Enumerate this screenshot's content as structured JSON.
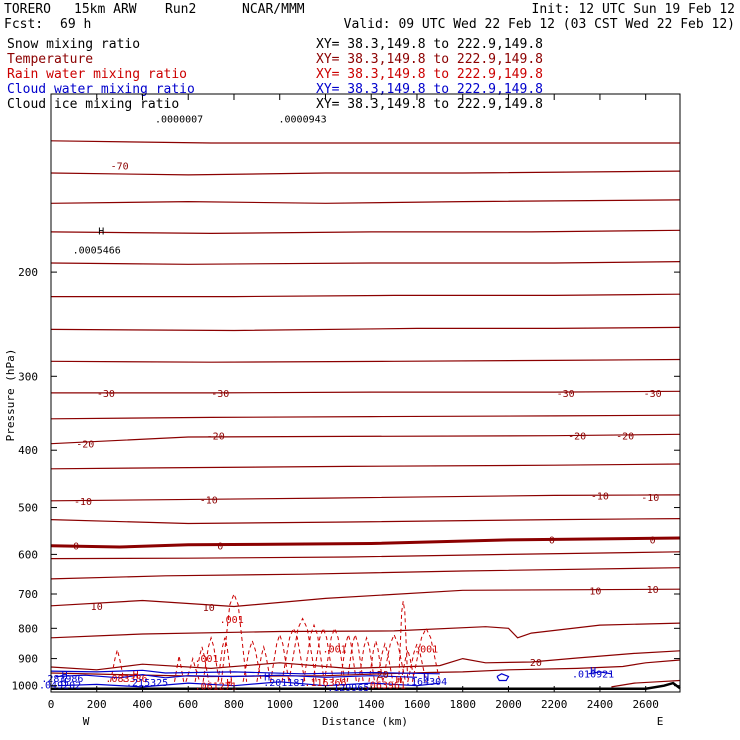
{
  "header": {
    "model": "TORERO",
    "resolution": "15km ARW",
    "run": "Run2",
    "center": "NCAR/MMM",
    "init": "Init: 12 UTC Sun 19 Feb 12",
    "fcst_label": "Fcst:",
    "fcst_value": "69 h",
    "valid": "Valid: 09 UTC Wed 22 Feb 12 (03 CST Wed 22 Feb 12)"
  },
  "colors": {
    "snow": "#000000",
    "temperature": "#8b0000",
    "rain": "#cc0000",
    "cloud_water": "#0000cc",
    "cloud_ice": "#000000"
  },
  "chart_data": {
    "type": "cross-section",
    "xlabel": "Distance (km)",
    "ylabel": "Pressure (hPa)",
    "xlim": [
      0,
      2750
    ],
    "ylim": [
      1025,
      100
    ],
    "x_ticks": [
      "0",
      "200",
      "400",
      "600",
      "800",
      "1000",
      "1200",
      "1400",
      "1600",
      "1800",
      "2000",
      "2200",
      "2400",
      "2600"
    ],
    "y_ticks": [
      "200",
      "300",
      "400",
      "500",
      "600",
      "700",
      "800",
      "900",
      "1000"
    ],
    "left_end": "W",
    "right_end": "E",
    "fields": [
      {
        "name": "Snow mixing ratio",
        "xy": "XY=  38.3,149.8 to 222.9,149.8"
      },
      {
        "name": "Temperature",
        "xy": "XY=  38.3,149.8 to 222.9,149.8"
      },
      {
        "name": "Rain water mixing ratio",
        "xy": "XY=  38.3,149.8 to 222.9,149.8"
      },
      {
        "name": "Cloud water mixing ratio",
        "xy": "XY=  38.3,149.8 to 222.9,149.8"
      },
      {
        "name": "Cloud ice mixing ratio",
        "xy": "XY=  38.3,149.8 to 222.9,149.8"
      }
    ],
    "temperature_contour_labels": [
      {
        "text": "-70",
        "x": 300,
        "p": 132
      },
      {
        "text": "-30",
        "x": 240,
        "p": 320
      },
      {
        "text": "-30",
        "x": 740,
        "p": 320
      },
      {
        "text": "-30",
        "x": 2250,
        "p": 320
      },
      {
        "text": "-30",
        "x": 2630,
        "p": 320
      },
      {
        "text": "-20",
        "x": 150,
        "p": 390
      },
      {
        "text": "-20",
        "x": 720,
        "p": 378
      },
      {
        "text": "-20",
        "x": 2300,
        "p": 378
      },
      {
        "text": "-20",
        "x": 2510,
        "p": 378
      },
      {
        "text": "-10",
        "x": 140,
        "p": 487
      },
      {
        "text": "-10",
        "x": 690,
        "p": 485
      },
      {
        "text": "-10",
        "x": 2400,
        "p": 477
      },
      {
        "text": "-10",
        "x": 2620,
        "p": 480
      },
      {
        "text": "0",
        "x": 110,
        "p": 580
      },
      {
        "text": "0",
        "x": 740,
        "p": 580
      },
      {
        "text": "0",
        "x": 2190,
        "p": 566
      },
      {
        "text": "0",
        "x": 2630,
        "p": 566
      },
      {
        "text": "10",
        "x": 200,
        "p": 733
      },
      {
        "text": "10",
        "x": 690,
        "p": 736
      },
      {
        "text": "10",
        "x": 2380,
        "p": 690
      },
      {
        "text": "10",
        "x": 2630,
        "p": 687
      },
      {
        "text": "20",
        "x": 1450,
        "p": 955
      },
      {
        "text": "20",
        "x": 2120,
        "p": 912
      }
    ],
    "min_max_labels": [
      {
        "text": "H",
        "x": 220,
        "p": 170,
        "color": "#000000"
      },
      {
        "text": ".0005466",
        "x": 200,
        "p": 183,
        "color": "#000000"
      },
      {
        "text": ".0000007",
        "x": 560,
        "p": 110,
        "color": "#000000"
      },
      {
        "text": ".0000943",
        "x": 1100,
        "p": 110,
        "color": "#000000"
      },
      {
        "text": ".001",
        "x": 790,
        "p": 771,
        "color": "#cc0000"
      },
      {
        "text": ".001",
        "x": 680,
        "p": 898,
        "color": "#cc0000"
      },
      {
        "text": ".001",
        "x": 1240,
        "p": 865,
        "color": "#cc0000"
      },
      {
        "text": ".001",
        "x": 1640,
        "p": 865,
        "color": "#cc0000"
      },
      {
        "text": "H",
        "x": 370,
        "p": 955,
        "color": "#cc0000"
      },
      {
        "text": ".083386",
        "x": 330,
        "p": 970,
        "color": "#cc0000"
      },
      {
        "text": "H",
        "x": 780,
        "p": 985,
        "color": "#cc0000"
      },
      {
        "text": ".061271",
        "x": 720,
        "p": 1000,
        "color": "#cc0000"
      },
      {
        "text": ".116366",
        "x": 1200,
        "p": 985,
        "color": "#cc0000"
      },
      {
        "text": ".063961",
        "x": 1460,
        "p": 995,
        "color": "#cc0000"
      },
      {
        "text": "H",
        "x": 1520,
        "p": 975,
        "color": "#cc0000"
      },
      {
        "text": "H",
        "x": 60,
        "p": 957,
        "color": "#0000cc"
      },
      {
        "text": ".283986",
        "x": 50,
        "p": 970,
        "color": "#0000cc"
      },
      {
        "text": "H",
        "x": 55,
        "p": 982,
        "color": "#0000cc"
      },
      {
        "text": ".049202",
        "x": 40,
        "p": 995,
        "color": "#0000cc"
      },
      {
        "text": ".215325",
        "x": 420,
        "p": 985,
        "color": "#0000cc"
      },
      {
        "text": "H",
        "x": 945,
        "p": 965,
        "color": "#0000cc"
      },
      {
        "text": ".201181",
        "x": 1020,
        "p": 985,
        "color": "#0000cc"
      },
      {
        "text": ".129965",
        "x": 1300,
        "p": 1005,
        "color": "#0000cc"
      },
      {
        "text": "H",
        "x": 1640,
        "p": 967,
        "color": "#0000cc"
      },
      {
        "text": ".164304",
        "x": 1640,
        "p": 983,
        "color": "#0000cc"
      },
      {
        "text": "H",
        "x": 2370,
        "p": 940,
        "color": "#0000cc"
      },
      {
        "text": ".010921",
        "x": 2370,
        "p": 953,
        "color": "#0000cc"
      }
    ]
  }
}
